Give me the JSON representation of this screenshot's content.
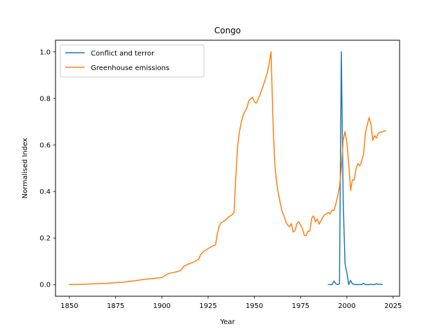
{
  "chart_data": {
    "type": "line",
    "title": "Congo",
    "xlabel": "Year",
    "ylabel": "Normalised Index",
    "xlim": [
      1842.5,
      2028.5
    ],
    "ylim": [
      -0.05,
      1.05
    ],
    "xticks": [
      1850,
      1875,
      1900,
      1925,
      1950,
      1975,
      2000,
      2025
    ],
    "yticks": [
      0.0,
      0.2,
      0.4,
      0.6,
      0.8,
      1.0
    ],
    "ytick_labels": [
      "0.0",
      "0.2",
      "0.4",
      "0.6",
      "0.8",
      "1.0"
    ],
    "grid": false,
    "legend_position": "top-left",
    "series": [
      {
        "name": "Conflict and terror",
        "color": "#1f77b4",
        "points": [
          [
            1990,
            0.0
          ],
          [
            1991,
            0.0
          ],
          [
            1992,
            0.0
          ],
          [
            1993,
            0.015
          ],
          [
            1994,
            0.004
          ],
          [
            1995,
            0.0
          ],
          [
            1996,
            0.003
          ],
          [
            1997,
            1.0
          ],
          [
            1998,
            0.36
          ],
          [
            1999,
            0.09
          ],
          [
            2000,
            0.05
          ],
          [
            2001,
            0.0
          ],
          [
            2002,
            0.018
          ],
          [
            2003,
            0.003
          ],
          [
            2004,
            0.001
          ],
          [
            2005,
            0.0
          ],
          [
            2006,
            0.0
          ],
          [
            2007,
            0.0
          ],
          [
            2008,
            0.0
          ],
          [
            2009,
            0.006
          ],
          [
            2010,
            0.0
          ],
          [
            2011,
            0.0
          ],
          [
            2012,
            0.0
          ],
          [
            2013,
            0.002
          ],
          [
            2014,
            0.0
          ],
          [
            2015,
            0.0
          ],
          [
            2016,
            0.004
          ],
          [
            2017,
            0.001
          ],
          [
            2018,
            0.002
          ],
          [
            2019,
            0.0
          ]
        ]
      },
      {
        "name": "Greenhouse emissions",
        "color": "#ff7f0e",
        "points": [
          [
            1850,
            0.0
          ],
          [
            1855,
            0.001
          ],
          [
            1860,
            0.002
          ],
          [
            1865,
            0.004
          ],
          [
            1870,
            0.005
          ],
          [
            1875,
            0.008
          ],
          [
            1880,
            0.011
          ],
          [
            1885,
            0.016
          ],
          [
            1890,
            0.022
          ],
          [
            1895,
            0.026
          ],
          [
            1900,
            0.03
          ],
          [
            1903,
            0.045
          ],
          [
            1905,
            0.05
          ],
          [
            1908,
            0.055
          ],
          [
            1910,
            0.06
          ],
          [
            1912,
            0.08
          ],
          [
            1915,
            0.09
          ],
          [
            1918,
            0.1
          ],
          [
            1920,
            0.11
          ],
          [
            1921,
            0.13
          ],
          [
            1923,
            0.145
          ],
          [
            1925,
            0.155
          ],
          [
            1928,
            0.168
          ],
          [
            1929,
            0.17
          ],
          [
            1930,
            0.22
          ],
          [
            1931,
            0.25
          ],
          [
            1932,
            0.265
          ],
          [
            1934,
            0.275
          ],
          [
            1936,
            0.29
          ],
          [
            1938,
            0.3
          ],
          [
            1939,
            0.31
          ],
          [
            1940,
            0.47
          ],
          [
            1941,
            0.6
          ],
          [
            1942,
            0.66
          ],
          [
            1943,
            0.7
          ],
          [
            1944,
            0.73
          ],
          [
            1946,
            0.76
          ],
          [
            1947,
            0.79
          ],
          [
            1949,
            0.805
          ],
          [
            1950,
            0.785
          ],
          [
            1951,
            0.78
          ],
          [
            1952,
            0.795
          ],
          [
            1953,
            0.815
          ],
          [
            1955,
            0.86
          ],
          [
            1957,
            0.91
          ],
          [
            1958,
            0.95
          ],
          [
            1959,
            1.0
          ],
          [
            1960,
            0.72
          ],
          [
            1961,
            0.52
          ],
          [
            1962,
            0.44
          ],
          [
            1963,
            0.39
          ],
          [
            1964,
            0.35
          ],
          [
            1965,
            0.315
          ],
          [
            1966,
            0.295
          ],
          [
            1967,
            0.27
          ],
          [
            1968,
            0.255
          ],
          [
            1969,
            0.248
          ],
          [
            1970,
            0.262
          ],
          [
            1971,
            0.226
          ],
          [
            1972,
            0.232
          ],
          [
            1973,
            0.262
          ],
          [
            1974,
            0.27
          ],
          [
            1975,
            0.255
          ],
          [
            1976,
            0.24
          ],
          [
            1977,
            0.212
          ],
          [
            1978,
            0.21
          ],
          [
            1979,
            0.23
          ],
          [
            1980,
            0.23
          ],
          [
            1981,
            0.285
          ],
          [
            1982,
            0.295
          ],
          [
            1983,
            0.27
          ],
          [
            1984,
            0.282
          ],
          [
            1985,
            0.26
          ],
          [
            1986,
            0.275
          ],
          [
            1987,
            0.29
          ],
          [
            1988,
            0.3
          ],
          [
            1989,
            0.305
          ],
          [
            1990,
            0.31
          ],
          [
            1991,
            0.303
          ],
          [
            1992,
            0.32
          ],
          [
            1993,
            0.318
          ],
          [
            1994,
            0.345
          ],
          [
            1995,
            0.38
          ],
          [
            1996,
            0.42
          ],
          [
            1997,
            0.5
          ],
          [
            1998,
            0.62
          ],
          [
            1999,
            0.658
          ],
          [
            2000,
            0.61
          ],
          [
            2001,
            0.52
          ],
          [
            2002,
            0.405
          ],
          [
            2003,
            0.45
          ],
          [
            2004,
            0.45
          ],
          [
            2005,
            0.5
          ],
          [
            2006,
            0.52
          ],
          [
            2007,
            0.51
          ],
          [
            2008,
            0.53
          ],
          [
            2009,
            0.56
          ],
          [
            2010,
            0.65
          ],
          [
            2011,
            0.685
          ],
          [
            2012,
            0.718
          ],
          [
            2013,
            0.69
          ],
          [
            2014,
            0.62
          ],
          [
            2015,
            0.64
          ],
          [
            2016,
            0.63
          ],
          [
            2017,
            0.65
          ],
          [
            2018,
            0.655
          ],
          [
            2019,
            0.655
          ],
          [
            2020,
            0.66
          ],
          [
            2021,
            0.66
          ]
        ]
      }
    ]
  }
}
